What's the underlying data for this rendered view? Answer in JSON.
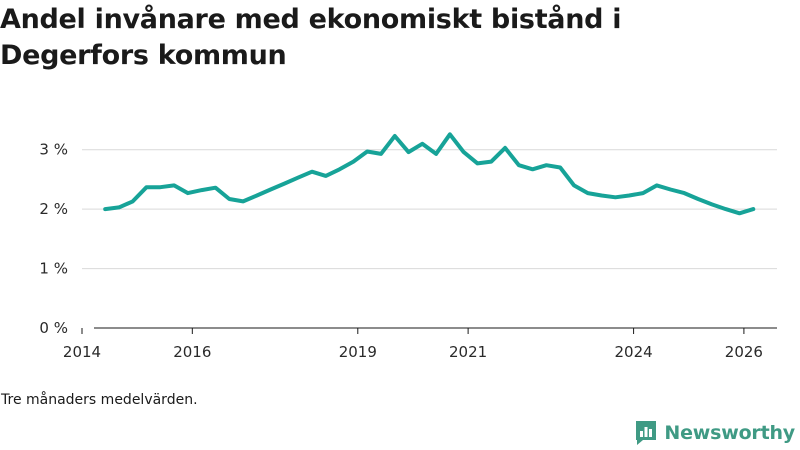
{
  "title": "Andel invånare med ekonomiskt bistånd i Degerfors kommun",
  "footnote": "Tre månaders medelvärden.",
  "brand": {
    "name": "Newsworthy",
    "logo_icon": "newsworthy-logo-icon",
    "color": "#3f9a84"
  },
  "colors": {
    "line": "#17a398",
    "grid": "#d9d9d9",
    "axis": "#1a1a1a"
  },
  "chart_data": {
    "type": "line",
    "title": "Andel invånare med ekonomiskt bistånd i Degerfors kommun",
    "xlabel": "",
    "ylabel": "",
    "ylim": [
      0,
      3.5
    ],
    "xlim": [
      2014.0,
      2026.6
    ],
    "y_ticks": [
      0,
      1,
      2,
      3
    ],
    "y_tick_labels": [
      "0 %",
      "1 %",
      "2 %",
      "3 %"
    ],
    "x_ticks": [
      2014,
      2016,
      2019,
      2021,
      2024,
      2026
    ],
    "x_tick_labels": [
      "2014",
      "2016",
      "2019",
      "2021",
      "2024",
      "2026"
    ],
    "grid": true,
    "series": [
      {
        "name": "Andel invånare med ekonomiskt bistånd",
        "x": [
          2014.42,
          2014.67,
          2014.92,
          2015.17,
          2015.42,
          2015.67,
          2015.92,
          2016.17,
          2016.42,
          2016.67,
          2016.92,
          2017.17,
          2017.42,
          2017.67,
          2017.92,
          2018.17,
          2018.42,
          2018.67,
          2018.92,
          2019.17,
          2019.42,
          2019.67,
          2019.92,
          2020.17,
          2020.42,
          2020.67,
          2020.92,
          2021.17,
          2021.42,
          2021.67,
          2021.92,
          2022.17,
          2022.42,
          2022.67,
          2022.92,
          2023.17,
          2023.42,
          2023.67,
          2023.92,
          2024.17,
          2024.42,
          2024.67,
          2024.92,
          2025.17,
          2025.42,
          2025.67,
          2025.92,
          2026.17
        ],
        "values": [
          2.0,
          2.03,
          2.13,
          2.37,
          2.37,
          2.4,
          2.27,
          2.32,
          2.36,
          2.17,
          2.13,
          2.23,
          2.33,
          2.43,
          2.53,
          2.63,
          2.56,
          2.67,
          2.8,
          2.97,
          2.93,
          3.23,
          2.96,
          3.1,
          2.93,
          3.26,
          2.96,
          2.77,
          2.8,
          3.03,
          2.74,
          2.67,
          2.74,
          2.7,
          2.4,
          2.27,
          2.23,
          2.2,
          2.23,
          2.27,
          2.4,
          2.33,
          2.27,
          2.17,
          2.08,
          2.0,
          1.93,
          2.0
        ]
      }
    ]
  }
}
